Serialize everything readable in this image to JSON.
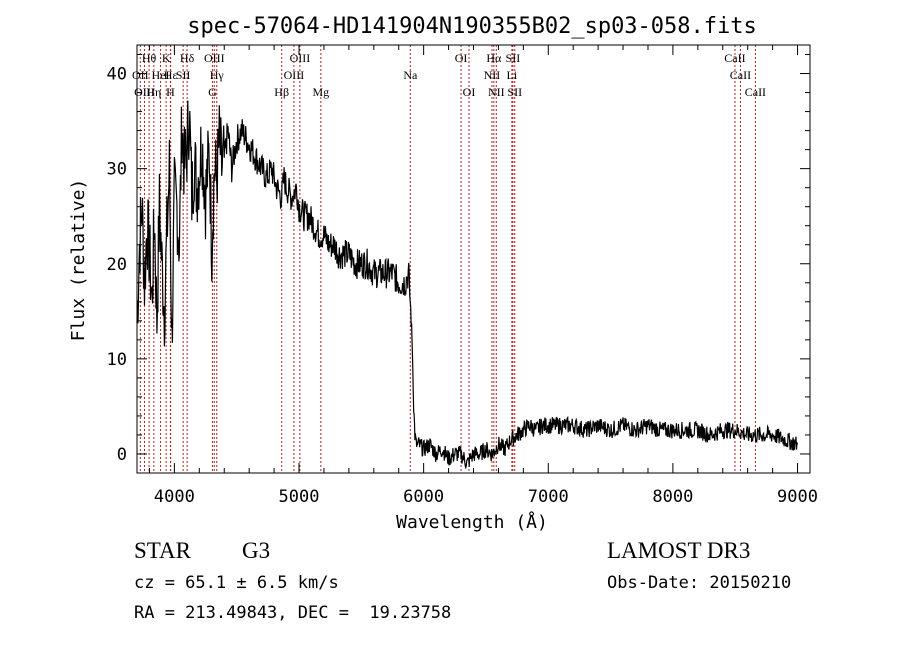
{
  "chart_data": {
    "type": "line",
    "title": "spec-57064-HD141904N190355B02_sp03-058.fits",
    "xlabel": "Wavelength (Å)",
    "ylabel": "Flux (relative)",
    "xlim": [
      3700,
      9100
    ],
    "ylim": [
      -2,
      43
    ],
    "xticks": [
      4000,
      5000,
      6000,
      7000,
      8000,
      9000
    ],
    "yticks": [
      0,
      10,
      20,
      30,
      40
    ],
    "grid": false,
    "series": [
      {
        "color": "#000000",
        "x": [
          3700,
          3720,
          3740,
          3760,
          3780,
          3800,
          3820,
          3840,
          3860,
          3880,
          3900,
          3920,
          3940,
          3960,
          3980,
          4000,
          4020,
          4040,
          4060,
          4080,
          4100,
          4120,
          4140,
          4160,
          4180,
          4200,
          4220,
          4250,
          4280,
          4300,
          4320,
          4340,
          4360,
          4380,
          4400,
          4430,
          4460,
          4500,
          4540,
          4580,
          4620,
          4660,
          4700,
          4740,
          4780,
          4820,
          4860,
          4880,
          4900,
          4940,
          4980,
          5000,
          5040,
          5080,
          5120,
          5160,
          5200,
          5240,
          5280,
          5320,
          5360,
          5400,
          5450,
          5500,
          5550,
          5600,
          5650,
          5700,
          5750,
          5800,
          5850,
          5880,
          5900,
          5910,
          5920,
          5930,
          5940,
          5960,
          6000,
          6050,
          6100,
          6150,
          6200,
          6250,
          6300,
          6350,
          6400,
          6450,
          6500,
          6550,
          6600,
          6650,
          6700,
          6750,
          6800,
          6850,
          6900,
          6950,
          7000,
          7100,
          7200,
          7300,
          7400,
          7500,
          7600,
          7700,
          7800,
          7900,
          8000,
          8100,
          8200,
          8300,
          8400,
          8500,
          8600,
          8700,
          8800,
          8900,
          9000
        ],
        "y": [
          14,
          22,
          26,
          18,
          24,
          21,
          16,
          25,
          14,
          26,
          20,
          15,
          23,
          30,
          12,
          27,
          26,
          22,
          35,
          30,
          32,
          36,
          27,
          31,
          28,
          30,
          33,
          27,
          32,
          22,
          30,
          29,
          33,
          30,
          31,
          34,
          30,
          33,
          34,
          33,
          32,
          31,
          30,
          29,
          30,
          28,
          27,
          29,
          28,
          27,
          28,
          26,
          25,
          25,
          24,
          23,
          23,
          22,
          22,
          21,
          21,
          21,
          20,
          20,
          20,
          19,
          19,
          19,
          19,
          18,
          18,
          19,
          14,
          11,
          5,
          2,
          1,
          1,
          0.5,
          1,
          0,
          0.5,
          -0.5,
          0,
          0,
          -1,
          0,
          0,
          0.5,
          0,
          1,
          0.5,
          1.5,
          2,
          2.5,
          3,
          2.5,
          3,
          3,
          3,
          3,
          2.5,
          3,
          2.5,
          3,
          2.5,
          3,
          2.5,
          2.5,
          2.5,
          2.5,
          2,
          2.5,
          2.5,
          2,
          2,
          2,
          1.5,
          1
        ]
      }
    ],
    "lines": [
      {
        "name": "Hθ",
        "x": 3797
      },
      {
        "name": "OII",
        "x": 3727
      },
      {
        "name": "Hε",
        "x": 3970
      },
      {
        "name": "OIII",
        "x": 3760
      },
      {
        "name": "Hη",
        "x": 3835
      },
      {
        "name": "K",
        "x": 3934
      },
      {
        "name": "HeI",
        "x": 3889
      },
      {
        "name": "SII",
        "x": 4070
      },
      {
        "name": "H",
        "x": 3968
      },
      {
        "name": "Hδ",
        "x": 4102
      },
      {
        "name": "OIII",
        "x": 4320
      },
      {
        "name": "Hγ",
        "x": 4340
      },
      {
        "name": "G",
        "x": 4305
      },
      {
        "name": "Hβ",
        "x": 4861
      },
      {
        "name": "OIII",
        "x": 4959
      },
      {
        "name": "OIII",
        "x": 5007
      },
      {
        "name": "Mg",
        "x": 5175
      },
      {
        "name": "Na",
        "x": 5893
      },
      {
        "name": "OI",
        "x": 6300
      },
      {
        "name": "OI",
        "x": 6364
      },
      {
        "name": "Hα",
        "x": 6563
      },
      {
        "name": "NII",
        "x": 6548
      },
      {
        "name": "NII",
        "x": 6583
      },
      {
        "name": "SII",
        "x": 6716
      },
      {
        "name": "Li",
        "x": 6708
      },
      {
        "name": "SII",
        "x": 6731
      },
      {
        "name": "CaII",
        "x": 8498
      },
      {
        "name": "CaII",
        "x": 8542
      },
      {
        "name": "CaII",
        "x": 8662
      }
    ]
  },
  "info": {
    "object_class": "STAR",
    "subclass": "G3",
    "survey": "LAMOST DR3",
    "cz": "cz = 65.1 ± 6.5 km/s",
    "obs_date": "Obs-Date: 20150210",
    "coords": "RA = 213.49843, DEC =  19.23758"
  }
}
